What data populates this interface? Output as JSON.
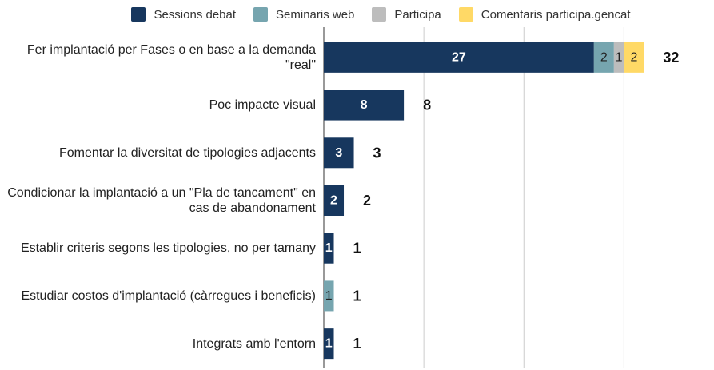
{
  "chart_data": {
    "type": "stacked-bar-horizontal",
    "categories": [
      "Fer implantació per Fases o en base a la demanda \"real\"",
      "Poc impacte visual",
      "Fomentar la diversitat de tipologies adjacents",
      "Condicionar la implantació a un \"Pla de tancament\" en cas de abandonament",
      "Establir criteris segons les tipologies, no per tamany",
      "Estudiar costos d'implantació (càrregues i beneficis)",
      "Integrats amb l'entorn"
    ],
    "series": [
      {
        "name": "Sessions debat",
        "color": "#17375e",
        "values": [
          27,
          8,
          3,
          2,
          1,
          0,
          1
        ]
      },
      {
        "name": "Seminaris web",
        "color": "#76a5af",
        "values": [
          2,
          0,
          0,
          0,
          0,
          1,
          0
        ]
      },
      {
        "name": "Participa",
        "color": "#bdbdbd",
        "values": [
          1,
          0,
          0,
          0,
          0,
          0,
          0
        ]
      },
      {
        "name": "Comentaris participa.gencat",
        "color": "#ffd966",
        "values": [
          2,
          0,
          0,
          0,
          0,
          0,
          0
        ]
      }
    ],
    "totals": [
      32,
      8,
      3,
      2,
      1,
      1,
      1
    ],
    "xlim": [
      0,
      39
    ],
    "xticks": [
      0,
      10,
      20,
      30
    ],
    "grid": true,
    "legend": "top"
  }
}
